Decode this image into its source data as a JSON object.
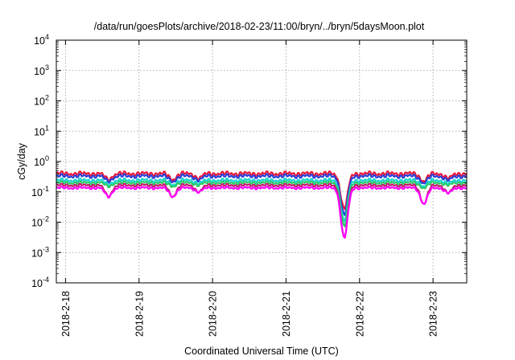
{
  "chart_data": {
    "type": "line",
    "title": "/data/run/goesPlots/archive/2018-02-23/11:00/bryn/../bryn/5daysMoon.plot",
    "xlabel": "Coordinated Universal Time (UTC)",
    "ylabel": "cGy/day",
    "yscale": "log",
    "ylim": [
      0.0001,
      10000
    ],
    "yticks": [
      {
        "value": 0.0001,
        "base": "10",
        "exp": "-4"
      },
      {
        "value": 0.001,
        "base": "10",
        "exp": "-3"
      },
      {
        "value": 0.01,
        "base": "10",
        "exp": "-2"
      },
      {
        "value": 0.1,
        "base": "10",
        "exp": "-1"
      },
      {
        "value": 1,
        "base": "10",
        "exp": "0"
      },
      {
        "value": 10,
        "base": "10",
        "exp": "1"
      },
      {
        "value": 100,
        "base": "10",
        "exp": "2"
      },
      {
        "value": 1000,
        "base": "10",
        "exp": "3"
      },
      {
        "value": 10000,
        "base": "10",
        "exp": "4"
      }
    ],
    "xlim": [
      "2018-02-17 21:00",
      "2018-02-23 11:00"
    ],
    "xticks": [
      "2018-2-18",
      "2018-2-19",
      "2018-2-20",
      "2018-2-21",
      "2018-2-22",
      "2018-2-23"
    ],
    "grid": true,
    "series": [
      {
        "color": "#e8183a",
        "level": 0.4
      },
      {
        "color": "#2a3fd8",
        "level": 0.33
      },
      {
        "color": "#18d6d0",
        "level": 0.24
      },
      {
        "color": "#2ec96a",
        "level": 0.2
      },
      {
        "color": "#c21b6a",
        "level": 0.165
      },
      {
        "color": "#ff00ff",
        "level": 0.135
      }
    ],
    "dips": [
      {
        "x": "2018-02-18 14:00",
        "min": 0.07
      },
      {
        "x": "2018-02-19 11:00",
        "min": 0.07
      },
      {
        "x": "2018-02-19 19:30",
        "min": 0.1
      },
      {
        "x": "2018-02-21 19:00",
        "min": 0.003
      },
      {
        "x": "2018-02-22 21:00",
        "min": 0.04
      },
      {
        "x": "2018-02-23 05:00",
        "min": 0.09
      }
    ]
  }
}
